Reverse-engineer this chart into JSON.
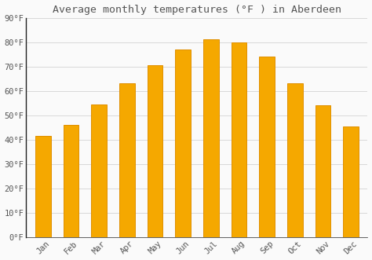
{
  "title": "Average monthly temperatures (°F ) in Aberdeen",
  "months": [
    "Jan",
    "Feb",
    "Mar",
    "Apr",
    "May",
    "Jun",
    "Jul",
    "Aug",
    "Sep",
    "Oct",
    "Nov",
    "Dec"
  ],
  "values": [
    41.5,
    46,
    54.5,
    63,
    70.5,
    77,
    81,
    80,
    74,
    63,
    54,
    45.5
  ],
  "bar_color": "#F5A800",
  "bar_edge_color": "#E09000",
  "background_color": "#FAFAFA",
  "grid_color": "#CCCCCC",
  "spine_color": "#222222",
  "ylim": [
    0,
    90
  ],
  "yticks": [
    0,
    10,
    20,
    30,
    40,
    50,
    60,
    70,
    80,
    90
  ],
  "ytick_labels": [
    "0°F",
    "10°F",
    "20°F",
    "30°F",
    "40°F",
    "50°F",
    "60°F",
    "70°F",
    "80°F",
    "90°F"
  ],
  "title_fontsize": 9.5,
  "tick_fontsize": 7.5,
  "font_color": "#555555",
  "bar_width": 0.55
}
